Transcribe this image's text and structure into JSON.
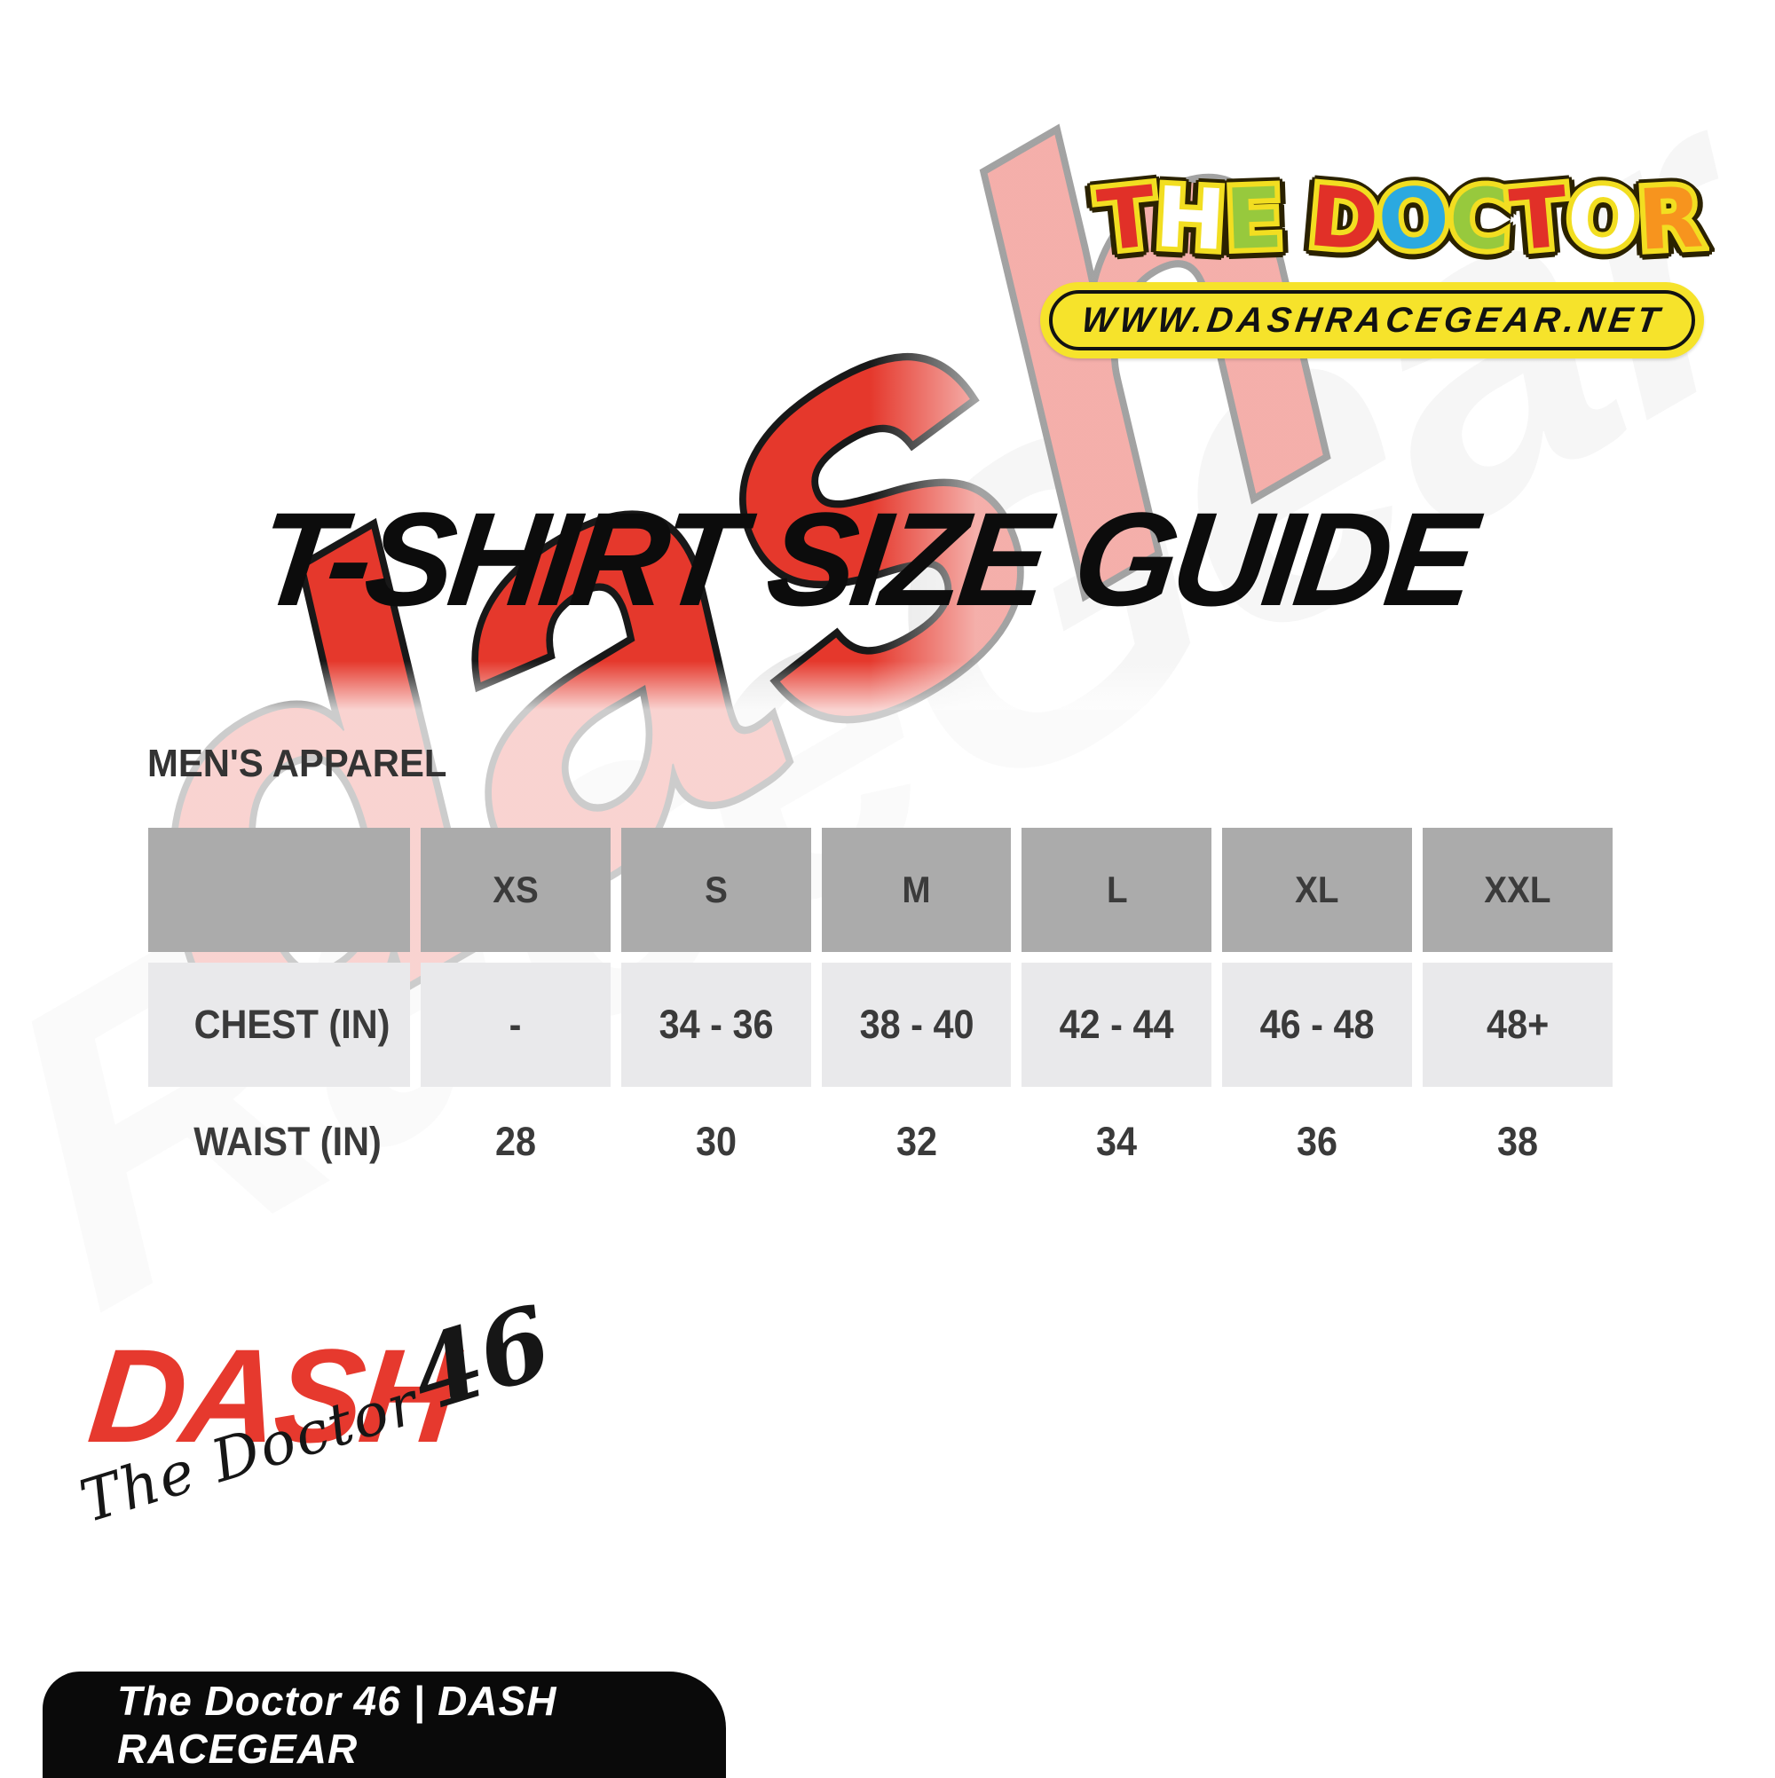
{
  "brand_header": {
    "doctor_logo": {
      "text": "THE DOCTOR",
      "letters": [
        {
          "ch": "T",
          "color": "#e13028",
          "tilt": -6
        },
        {
          "ch": "H",
          "color": "#ffffff",
          "tilt": 3
        },
        {
          "ch": "E",
          "color": "#97c93d",
          "tilt": -2
        },
        {
          "ch": " "
        },
        {
          "ch": "D",
          "color": "#e13028",
          "tilt": 5
        },
        {
          "ch": "O",
          "color": "#2ba9e0",
          "tilt": -4
        },
        {
          "ch": "C",
          "color": "#97c93d",
          "tilt": 3
        },
        {
          "ch": "T",
          "color": "#e13028",
          "tilt": -5
        },
        {
          "ch": "O",
          "color": "#ffffff",
          "tilt": 4
        },
        {
          "ch": "R",
          "color": "#f7941e",
          "tilt": -3
        }
      ]
    },
    "url_pill": {
      "text": "WWW.DASHRACEGEAR.NET",
      "bg": "#f6e32b"
    }
  },
  "title": "T-SHIRT SIZE GUIDE",
  "section_label": "MEN'S APPAREL",
  "size_table": {
    "columns": [
      "",
      "XS",
      "S",
      "M",
      "L",
      "XL",
      "XXL"
    ],
    "rows": [
      {
        "label": "CHEST (IN)",
        "shaded": true,
        "values": [
          "-",
          "34 - 36",
          "38 - 40",
          "42 - 44",
          "46 - 48",
          "48+"
        ]
      },
      {
        "label": "WAIST (IN)",
        "shaded": false,
        "values": [
          "28",
          "30",
          "32",
          "34",
          "36",
          "38"
        ]
      }
    ]
  },
  "dash_brand": {
    "wordmark": "DASH",
    "script": "The Doctor",
    "number": "46"
  },
  "footer": {
    "text": "The Doctor 46 | DASH RACEGEAR"
  },
  "watermark": {
    "red_word": "dash",
    "gray_word": "RaceGear"
  },
  "colors": {
    "doctor_yellow_outline": "#f2de21",
    "pill_yellow": "#f6e32b",
    "dash_red": "#e6392e",
    "watermark_red": "#e5382c",
    "watermark_gray": "#e8e8e8",
    "header_cell_gray": "#ababab",
    "row_cell_gray": "#e9e9eb",
    "table_text": "#3a3a3a",
    "footer_black": "#0a0a0a"
  }
}
